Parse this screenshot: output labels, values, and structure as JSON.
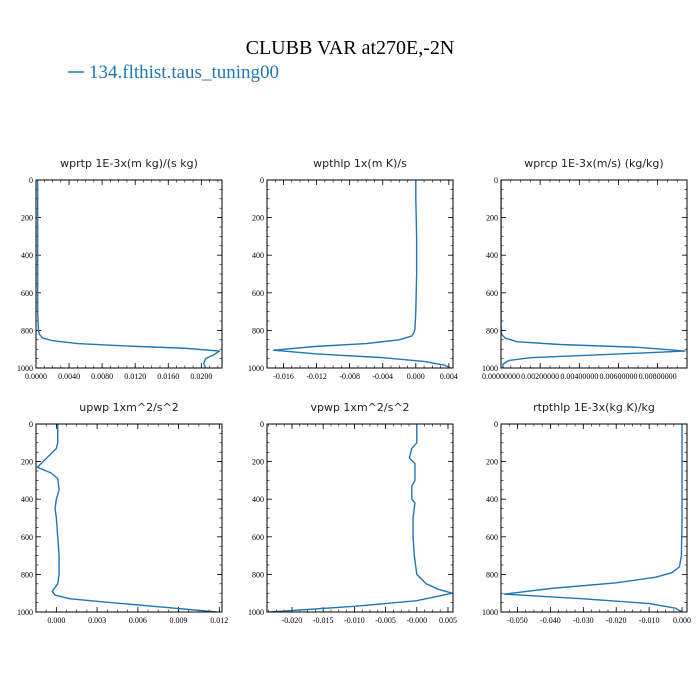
{
  "title": "CLUBB VAR at270E,-2N",
  "legend": {
    "label": "134.flthist.taus_tuning00",
    "color": "#1f77b4"
  },
  "chart_data": [
    {
      "type": "line",
      "title": "wprtp  1E-3x(m kg)/(s kg)",
      "xlim": [
        0.0,
        0.0225
      ],
      "ylim": [
        1000,
        0
      ],
      "xticks": [
        0.0,
        0.004,
        0.008,
        0.012,
        0.016,
        0.02
      ],
      "xtick_labels": [
        "0.0000",
        "0.0040",
        "0.0080",
        "0.0120",
        "0.0160",
        "0.0200"
      ],
      "yticks": [
        0,
        200,
        400,
        600,
        800,
        1000
      ],
      "ytick_labels": [
        "0",
        "200",
        "400",
        "600",
        "800",
        "1000"
      ],
      "series": [
        {
          "color": "#1f77b4",
          "x": [
            0.0002,
            0.0002,
            0.0002,
            0.0002,
            0.0003,
            0.0004,
            0.0008,
            0.002,
            0.005,
            0.012,
            0.018,
            0.0222,
            0.0215,
            0.0205,
            0.0203,
            0.0205
          ],
          "y": [
            0,
            300,
            500,
            700,
            800,
            820,
            840,
            855,
            870,
            885,
            895,
            910,
            930,
            950,
            975,
            1000
          ]
        }
      ]
    },
    {
      "type": "line",
      "title": "wpthlp  1x(m K)/s",
      "xlim": [
        -0.018,
        0.0045
      ],
      "ylim": [
        1000,
        0
      ],
      "xticks": [
        -0.016,
        -0.012,
        -0.008,
        -0.004,
        0.0,
        0.004
      ],
      "xtick_labels": [
        "-0.016",
        "-0.012",
        "-0.008",
        "-0.004",
        "0.000",
        "0.004"
      ],
      "yticks": [
        0,
        200,
        400,
        600,
        800,
        1000
      ],
      "ytick_labels": [
        "0",
        "200",
        "400",
        "600",
        "800",
        "1000"
      ],
      "series": [
        {
          "color": "#1f77b4",
          "x": [
            0.0,
            0.0,
            0.0001,
            0.0001,
            0.0,
            -0.0001,
            -0.0002,
            -0.0005,
            -0.002,
            -0.006,
            -0.012,
            -0.0172,
            -0.012,
            -0.004,
            0.001,
            0.0035,
            0.0042
          ],
          "y": [
            0,
            100,
            300,
            500,
            700,
            790,
            810,
            830,
            850,
            870,
            885,
            905,
            925,
            945,
            965,
            985,
            1000
          ]
        }
      ]
    },
    {
      "type": "line",
      "title": "wprcp  1E-3x(m/s) (kg/kg)",
      "xlim": [
        0.0,
        0.0095
      ],
      "ylim": [
        1000,
        0
      ],
      "xticks": [
        0.0,
        0.002,
        0.004,
        0.006,
        0.008
      ],
      "xtick_labels": [
        "0.00000000",
        "0.00200000",
        "0.00400000",
        "0.00600000",
        "0.00800000"
      ],
      "yticks": [
        0,
        200,
        400,
        600,
        800,
        1000
      ],
      "ytick_labels": [
        "0",
        "200",
        "400",
        "600",
        "800",
        "1000"
      ],
      "series": [
        {
          "color": "#1f77b4",
          "x": [
            0.0,
            0.0,
            0.0,
            3e-05,
            0.0002,
            0.0008,
            0.003,
            0.007,
            0.0094,
            0.005,
            0.0015,
            0.0004,
            0.0001,
            0.0001
          ],
          "y": [
            0,
            500,
            780,
            820,
            840,
            860,
            875,
            890,
            910,
            930,
            945,
            960,
            980,
            1000
          ]
        }
      ]
    },
    {
      "type": "line",
      "title": "upwp  1xm^2/s^2",
      "xlim": [
        -0.0015,
        0.0122
      ],
      "ylim": [
        1000,
        0
      ],
      "xticks": [
        0.0,
        0.003,
        0.006,
        0.009,
        0.012
      ],
      "xtick_labels": [
        "0.000",
        "0.003",
        "0.006",
        "0.009",
        "0.012"
      ],
      "yticks": [
        0,
        200,
        400,
        600,
        800,
        1000
      ],
      "ytick_labels": [
        "0",
        "200",
        "400",
        "600",
        "800",
        "1000"
      ],
      "series": [
        {
          "color": "#1f77b4",
          "x": [
            0.0001,
            0.0001,
            0.0,
            -0.0007,
            -0.0014,
            -0.0004,
            0.0001,
            0.0002,
            0.0,
            -0.0001,
            0.0,
            0.0001,
            0.0002,
            0.0002,
            0.0001,
            -0.0003,
            -0.0001,
            0.001,
            0.004,
            0.008,
            0.0118
          ],
          "y": [
            0,
            100,
            130,
            180,
            230,
            260,
            290,
            350,
            400,
            450,
            500,
            600,
            700,
            800,
            850,
            890,
            910,
            930,
            950,
            975,
            1000
          ]
        }
      ]
    },
    {
      "type": "line",
      "title": "vpwp  1xm^2/s^2",
      "xlim": [
        -0.024,
        0.0058
      ],
      "ylim": [
        1000,
        0
      ],
      "xticks": [
        -0.02,
        -0.015,
        -0.01,
        -0.005,
        0.0,
        0.005
      ],
      "xtick_labels": [
        "-0.020",
        "-0.015",
        "-0.010",
        "-0.005",
        "-0.000",
        "0.005"
      ],
      "yticks": [
        0,
        200,
        400,
        600,
        800,
        1000
      ],
      "ytick_labels": [
        "0",
        "200",
        "400",
        "600",
        "800",
        "1000"
      ],
      "series": [
        {
          "color": "#1f77b4",
          "x": [
            0.0,
            0.0,
            -0.0008,
            -0.0012,
            -0.0003,
            -0.0003,
            -0.0008,
            -0.0008,
            -0.0003,
            -0.0006,
            -0.0006,
            -0.0004,
            0.0,
            0.0015,
            0.0035,
            0.0057,
            0.0,
            -0.01,
            -0.0235
          ],
          "y": [
            0,
            100,
            130,
            180,
            210,
            300,
            330,
            400,
            420,
            500,
            600,
            700,
            800,
            850,
            880,
            900,
            940,
            970,
            1000
          ]
        }
      ]
    },
    {
      "type": "line",
      "title": "rtpthlp  1E-3x(kg K)/kg",
      "xlim": [
        -0.055,
        0.0015
      ],
      "ylim": [
        1000,
        0
      ],
      "xticks": [
        -0.05,
        -0.04,
        -0.03,
        -0.02,
        -0.01,
        0.0
      ],
      "xtick_labels": [
        "-0.050",
        "-0.040",
        "-0.030",
        "-0.020",
        "-0.010",
        "0.000"
      ],
      "yticks": [
        0,
        200,
        400,
        600,
        800,
        1000
      ],
      "ytick_labels": [
        "0",
        "200",
        "400",
        "600",
        "800",
        "1000"
      ],
      "series": [
        {
          "color": "#1f77b4",
          "x": [
            0.0,
            0.0,
            -0.0002,
            -0.0008,
            -0.003,
            -0.008,
            -0.02,
            -0.04,
            -0.054,
            -0.03,
            -0.01,
            -0.002,
            0.0
          ],
          "y": [
            0,
            500,
            700,
            760,
            790,
            815,
            845,
            875,
            905,
            930,
            955,
            980,
            1000
          ]
        }
      ]
    }
  ]
}
